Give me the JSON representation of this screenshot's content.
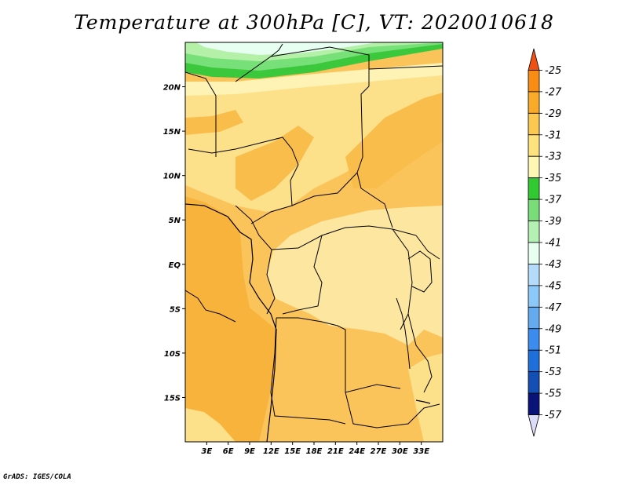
{
  "title": "Temperature at 300hPa [C], VT: 2020010618",
  "credit": "GrADS: IGES/COLA",
  "map": {
    "lon_range": [
      0,
      36
    ],
    "lat_range": [
      -20,
      25
    ],
    "lon_ticks": [
      "3E",
      "6E",
      "9E",
      "12E",
      "15E",
      "18E",
      "21E",
      "24E",
      "27E",
      "30E",
      "33E"
    ],
    "lat_ticks": [
      "20N",
      "15N",
      "10N",
      "5N",
      "EQ",
      "5S",
      "10S",
      "15S"
    ],
    "fill_colors": {
      "-29_-27": "#f8b840",
      "-31_-29": "#fde07c",
      "-33_-31": "#fef3b4",
      "-35_-33": "#e8fad8",
      "-37_-35": "#3cc83c",
      "-39_-37": "#78e078",
      "-41_-39": "#b4f0a8"
    }
  },
  "colorbar": {
    "labels": [
      "-25",
      "-27",
      "-29",
      "-31",
      "-33",
      "-35",
      "-37",
      "-39",
      "-41",
      "-43",
      "-45",
      "-47",
      "-49",
      "-51",
      "-53",
      "-55",
      "-57"
    ],
    "colors": [
      "#f05014",
      "#f88c14",
      "#f8aa28",
      "#fdc850",
      "#fde27e",
      "#fef6b4",
      "#32c832",
      "#78dc78",
      "#b4f0b4",
      "#e6fff0",
      "#b4dcfa",
      "#8cc8fa",
      "#64aaf0",
      "#3c8cf0",
      "#1e6edc",
      "#1450b4",
      "#0a1478",
      "#dcdcf8"
    ]
  }
}
